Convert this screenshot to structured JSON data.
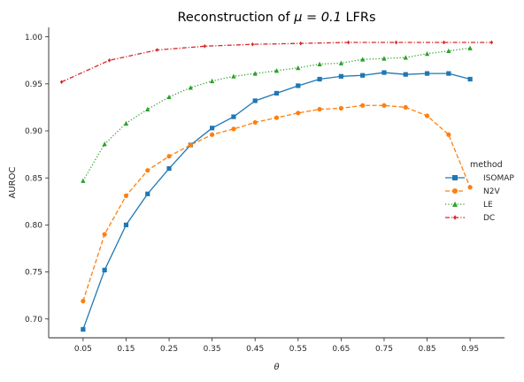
{
  "chart_data": {
    "type": "line",
    "title": "Reconstruction of μ = 0.1 LFRs",
    "title_prefix": "Reconstruction of ",
    "title_math": "μ = 0.1",
    "title_suffix": " LFRs",
    "xlabel": "θ",
    "ylabel": "AUROC",
    "xlim": [
      -0.03,
      1.03
    ],
    "ylim": [
      0.68,
      1.01
    ],
    "xticks": [
      0.05,
      0.15,
      0.25,
      0.35,
      0.45,
      0.55,
      0.65,
      0.75,
      0.85,
      0.95
    ],
    "xtick_labels": [
      "0.05",
      "0.15",
      "0.25",
      "0.35",
      "0.45",
      "0.55",
      "0.65",
      "0.75",
      "0.85",
      "0.95"
    ],
    "yticks": [
      0.7,
      0.75,
      0.8,
      0.85,
      0.9,
      0.95,
      1.0
    ],
    "ytick_labels": [
      "0.70",
      "0.75",
      "0.80",
      "0.85",
      "0.90",
      "0.95",
      "1.00"
    ],
    "grid": false,
    "legend": {
      "title": "method",
      "placement": "right"
    },
    "series": [
      {
        "name": "ISOMAP",
        "color": "#1f77b4",
        "marker": "square",
        "dash": "solid",
        "x": [
          0.05,
          0.1,
          0.15,
          0.2,
          0.25,
          0.3,
          0.35,
          0.4,
          0.45,
          0.5,
          0.55,
          0.6,
          0.65,
          0.7,
          0.75,
          0.8,
          0.85,
          0.9,
          0.95
        ],
        "y": [
          0.689,
          0.752,
          0.8,
          0.833,
          0.86,
          0.885,
          0.903,
          0.915,
          0.932,
          0.94,
          0.948,
          0.955,
          0.958,
          0.959,
          0.962,
          0.96,
          0.961,
          0.961,
          0.955
        ]
      },
      {
        "name": "N2V",
        "color": "#ff7f0e",
        "marker": "circle",
        "dash": "dashed",
        "x": [
          0.05,
          0.1,
          0.15,
          0.2,
          0.25,
          0.3,
          0.35,
          0.4,
          0.45,
          0.5,
          0.55,
          0.6,
          0.65,
          0.7,
          0.75,
          0.8,
          0.85,
          0.9,
          0.95
        ],
        "y": [
          0.719,
          0.79,
          0.831,
          0.858,
          0.873,
          0.885,
          0.896,
          0.902,
          0.909,
          0.914,
          0.919,
          0.923,
          0.924,
          0.927,
          0.927,
          0.925,
          0.916,
          0.896,
          0.84
        ]
      },
      {
        "name": "LE",
        "color": "#2ca02c",
        "marker": "triangle",
        "dash": "dotted",
        "x": [
          0.05,
          0.1,
          0.15,
          0.2,
          0.25,
          0.3,
          0.35,
          0.4,
          0.45,
          0.5,
          0.55,
          0.6,
          0.65,
          0.7,
          0.75,
          0.8,
          0.85,
          0.9,
          0.95
        ],
        "y": [
          0.847,
          0.886,
          0.908,
          0.923,
          0.936,
          0.946,
          0.953,
          0.958,
          0.961,
          0.964,
          0.967,
          0.971,
          0.972,
          0.976,
          0.977,
          0.978,
          0.982,
          0.985,
          0.988
        ]
      },
      {
        "name": "DC",
        "color": "#d62728",
        "marker": "diamond",
        "dash": "dashdot",
        "x": [
          0.0,
          0.111,
          0.222,
          0.333,
          0.444,
          0.556,
          0.667,
          0.778,
          0.889,
          1.0
        ],
        "y": [
          0.952,
          0.975,
          0.986,
          0.99,
          0.992,
          0.993,
          0.994,
          0.994,
          0.994,
          0.994
        ]
      }
    ]
  }
}
